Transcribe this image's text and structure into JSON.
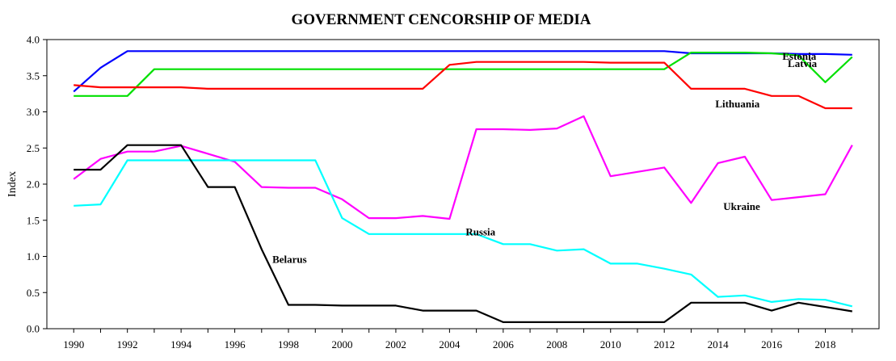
{
  "chart_data": {
    "type": "line",
    "title": "GOVERNMENT CENCORSHIP OF MEDIA",
    "xlabel": "",
    "ylabel": "Index",
    "xlim": [
      1989,
      2020
    ],
    "ylim": [
      0.0,
      4.0
    ],
    "x": [
      1990,
      1991,
      1992,
      1993,
      1994,
      1995,
      1996,
      1997,
      1998,
      1999,
      2000,
      2001,
      2002,
      2003,
      2004,
      2005,
      2006,
      2007,
      2008,
      2009,
      2010,
      2011,
      2012,
      2013,
      2014,
      2015,
      2016,
      2017,
      2018,
      2019
    ],
    "x_ticks": [
      "1990",
      "1992",
      "1994",
      "1996",
      "1998",
      "2000",
      "2002",
      "2004",
      "2006",
      "2008",
      "2010",
      "2012",
      "2014",
      "2016",
      "2018"
    ],
    "y_ticks": [
      "0.0",
      "0.5",
      "1.0",
      "1.5",
      "2.0",
      "2.5",
      "3.0",
      "3.5",
      "4.0"
    ],
    "grid": false,
    "legend": "none",
    "series": [
      {
        "name": "Estonia",
        "color": "#0000ff",
        "values": [
          3.28,
          3.61,
          3.84,
          3.84,
          3.84,
          3.84,
          3.84,
          3.84,
          3.84,
          3.84,
          3.84,
          3.84,
          3.84,
          3.84,
          3.84,
          3.84,
          3.84,
          3.84,
          3.84,
          3.84,
          3.84,
          3.84,
          3.84,
          3.81,
          3.81,
          3.81,
          3.81,
          3.8,
          3.8,
          3.79
        ]
      },
      {
        "name": "Latvia",
        "color": "#00e000",
        "values": [
          3.22,
          3.22,
          3.22,
          3.59,
          3.59,
          3.59,
          3.59,
          3.59,
          3.59,
          3.59,
          3.59,
          3.59,
          3.59,
          3.59,
          3.59,
          3.59,
          3.59,
          3.59,
          3.59,
          3.59,
          3.59,
          3.59,
          3.59,
          3.82,
          3.82,
          3.82,
          3.81,
          3.78,
          3.41,
          3.76
        ]
      },
      {
        "name": "Lithuania",
        "color": "#ff0000",
        "values": [
          3.37,
          3.34,
          3.34,
          3.34,
          3.34,
          3.32,
          3.32,
          3.32,
          3.32,
          3.32,
          3.32,
          3.32,
          3.32,
          3.32,
          3.65,
          3.69,
          3.69,
          3.69,
          3.69,
          3.69,
          3.68,
          3.68,
          3.68,
          3.32,
          3.32,
          3.32,
          3.22,
          3.22,
          3.05,
          3.05
        ]
      },
      {
        "name": "Ukraine",
        "color": "#ff00ff",
        "values": [
          2.07,
          2.35,
          2.45,
          2.45,
          2.53,
          2.42,
          2.31,
          1.96,
          1.95,
          1.95,
          1.79,
          1.53,
          1.53,
          1.56,
          1.52,
          2.76,
          2.76,
          2.75,
          2.77,
          2.94,
          2.11,
          2.17,
          2.23,
          1.74,
          2.29,
          2.38,
          1.78,
          1.82,
          1.86,
          2.54
        ]
      },
      {
        "name": "Russia",
        "color": "#00ffff",
        "values": [
          1.7,
          1.72,
          2.33,
          2.33,
          2.33,
          2.33,
          2.33,
          2.33,
          2.33,
          2.33,
          1.53,
          1.31,
          1.31,
          1.31,
          1.31,
          1.31,
          1.17,
          1.17,
          1.08,
          1.1,
          0.9,
          0.9,
          0.83,
          0.75,
          0.44,
          0.46,
          0.37,
          0.41,
          0.4,
          0.31
        ]
      },
      {
        "name": "Belarus",
        "color": "#000000",
        "values": [
          2.2,
          2.2,
          2.54,
          2.54,
          2.54,
          1.96,
          1.96,
          1.1,
          0.33,
          0.33,
          0.32,
          0.32,
          0.32,
          0.25,
          0.25,
          0.25,
          0.09,
          0.09,
          0.09,
          0.09,
          0.09,
          0.09,
          0.09,
          0.36,
          0.36,
          0.36,
          0.25,
          0.36,
          0.3,
          0.24
        ]
      }
    ],
    "annotations": [
      {
        "text": "Estonia",
        "series": "Estonia",
        "x": 2016.4,
        "y": 3.72
      },
      {
        "text": "Latvia",
        "series": "Latvia",
        "x": 2016.6,
        "y": 3.62
      },
      {
        "text": "Lithuania",
        "series": "Lithuania",
        "x": 2013.9,
        "y": 3.06
      },
      {
        "text": "Ukraine",
        "series": "Ukraine",
        "x": 2014.2,
        "y": 1.64
      },
      {
        "text": "Russia",
        "series": "Russia",
        "x": 2004.6,
        "y": 1.29
      },
      {
        "text": "Belarus",
        "series": "Belarus",
        "x": 1997.4,
        "y": 0.91
      }
    ]
  }
}
